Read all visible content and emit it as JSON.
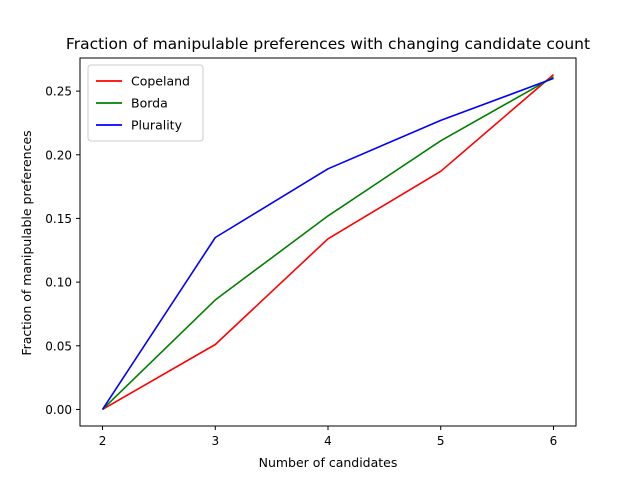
{
  "chart_data": {
    "type": "line",
    "title": "Fraction of manipulable preferences with changing candidate count",
    "xlabel": "Number of candidates",
    "ylabel": "Fraction of manipulable preferences",
    "x": [
      2,
      3,
      4,
      5,
      6
    ],
    "xlim": [
      1.8,
      6.2
    ],
    "ylim": [
      -0.013,
      0.276
    ],
    "xticks": [
      "2",
      "3",
      "4",
      "5",
      "6"
    ],
    "yticks": [
      "0.00",
      "0.05",
      "0.10",
      "0.15",
      "0.20",
      "0.25"
    ],
    "grid": false,
    "legend_position": "top-left",
    "series": [
      {
        "name": "Copeland",
        "color": "#ff0000",
        "values": [
          0.0,
          0.051,
          0.134,
          0.187,
          0.263
        ]
      },
      {
        "name": "Borda",
        "color": "#008000",
        "values": [
          0.0,
          0.086,
          0.152,
          0.211,
          0.261
        ]
      },
      {
        "name": "Plurality",
        "color": "#0000ff",
        "values": [
          0.0,
          0.135,
          0.189,
          0.227,
          0.26
        ]
      }
    ]
  }
}
